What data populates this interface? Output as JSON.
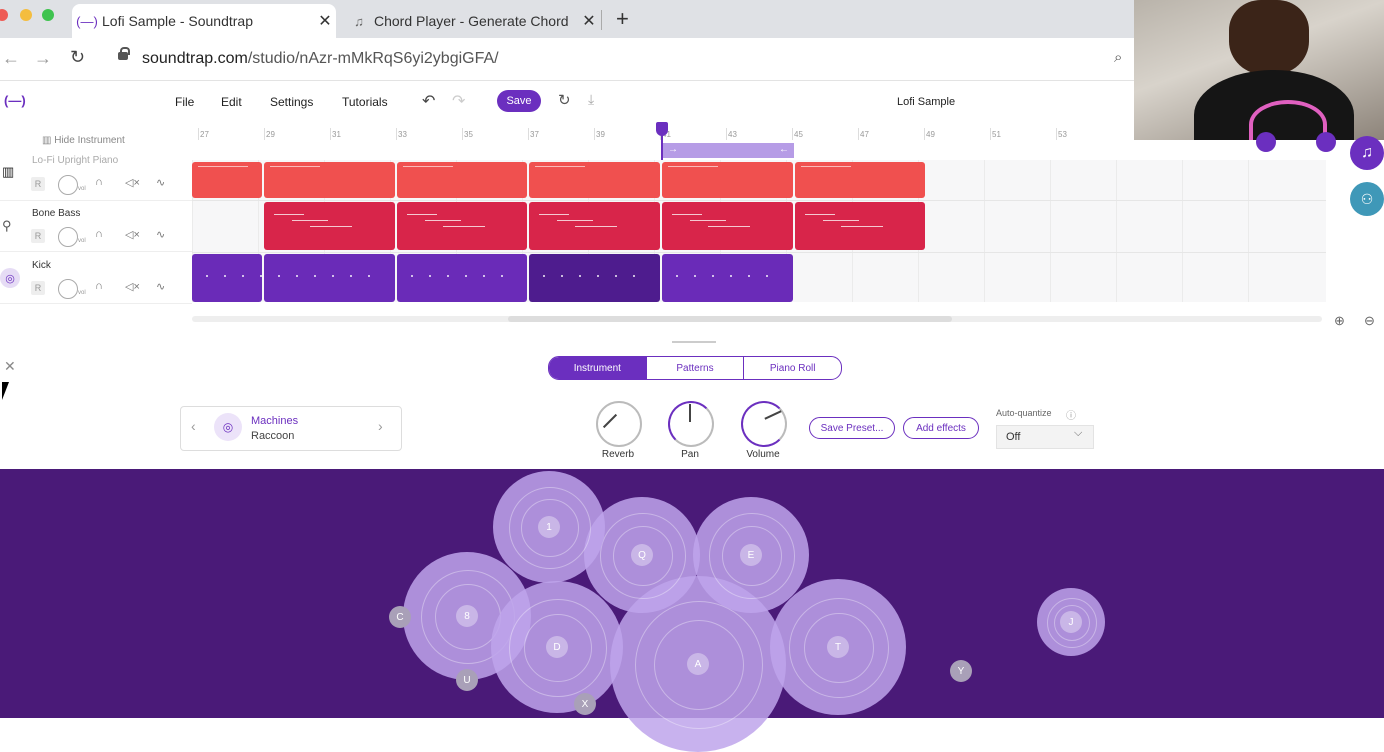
{
  "browser": {
    "tabs": [
      {
        "title": "Lofi Sample - Soundtrap",
        "active": true
      },
      {
        "title": "Chord Player - Generate Chord",
        "active": false
      }
    ],
    "url_host": "soundtrap.com",
    "url_path": "/studio/nAzr-mMkRqS6yi2ybgiGFA/"
  },
  "app": {
    "logo": "(—)",
    "menu": [
      "File",
      "Edit",
      "Settings",
      "Tutorials"
    ],
    "save_label": "Save",
    "project_title": "Lofi Sample",
    "hide_instrument": "Hide Instrument",
    "ruler_ticks": [
      "27",
      "29",
      "31",
      "33",
      "35",
      "37",
      "39",
      "41",
      "43",
      "45",
      "47",
      "49",
      "51",
      "53"
    ]
  },
  "tracks": [
    {
      "name": "Lo-Fi Upright Piano",
      "color": "#f0504f"
    },
    {
      "name": "Bone Bass",
      "color": "#d8254a"
    },
    {
      "name": "Kick",
      "color": "#6a2bb8"
    }
  ],
  "track_controls": {
    "record": "R",
    "volume_label": "vol"
  },
  "instrument_panel": {
    "tabs": [
      "Instrument",
      "Patterns",
      "Piano Roll"
    ],
    "active_tab": "Instrument",
    "instrument_title": "Machines",
    "instrument_sub": "Raccoon",
    "knobs": [
      "Reverb",
      "Pan",
      "Volume"
    ],
    "save_preset": "Save Preset...",
    "add_effects": "Add effects",
    "auto_quantize_label": "Auto-quantize",
    "auto_quantize_value": "Off"
  },
  "pads": [
    "1",
    "Q",
    "E",
    "8",
    "D",
    "A",
    "T",
    "J",
    "C",
    "U",
    "X",
    "Y"
  ],
  "colors": {
    "accent": "#6b2fbf",
    "pad_bg": "#4a1a78"
  }
}
